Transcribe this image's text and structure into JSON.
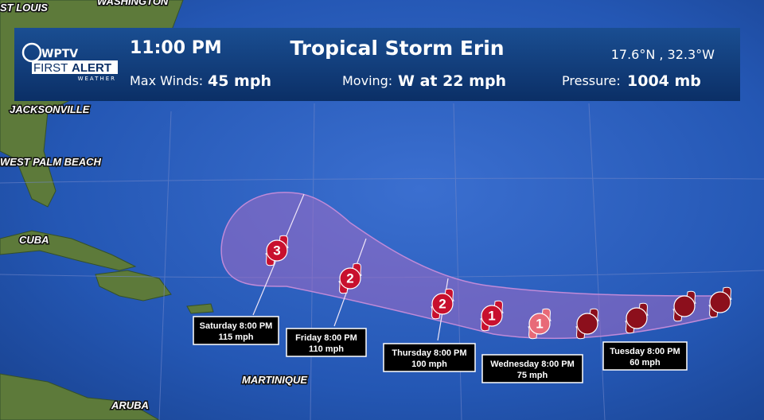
{
  "places": [
    "ST LOUIS",
    "WASHINGTON",
    "JACKSONVILLE",
    "WEST PALM BEACH",
    "CUBA",
    "MARTINIQUE",
    "ARUBA"
  ],
  "logo": {
    "brand": "WPTV",
    "first": "FIRST",
    "alert": "ALERT",
    "sub": "WEATHER"
  },
  "header": {
    "time": "11:00 PM",
    "title": "Tropical Storm Erin",
    "position": "17.6°N , 32.3°W",
    "winds_label": "Max Winds:",
    "winds": "45 mph",
    "moving_label": "Moving:",
    "moving": "W at 22 mph",
    "pressure_label": "Pressure:",
    "pressure": "1004 mb"
  },
  "track": [
    {
      "category": "3"
    },
    {
      "category": "2"
    },
    {
      "category": "2"
    },
    {
      "category": "1"
    },
    {
      "category": "1"
    },
    {},
    {},
    {},
    {}
  ],
  "forecast": [
    {
      "time": "Saturday 8:00 PM",
      "wind": "115 mph"
    },
    {
      "time": "Friday 8:00 PM",
      "wind": "110 mph"
    },
    {
      "time": "Thursday 8:00 PM",
      "wind": "100 mph"
    },
    {
      "time": "Wednesday 8:00 PM",
      "wind": "75 mph"
    },
    {
      "time": "Tuesday 8:00 PM",
      "wind": "60 mph"
    }
  ]
}
